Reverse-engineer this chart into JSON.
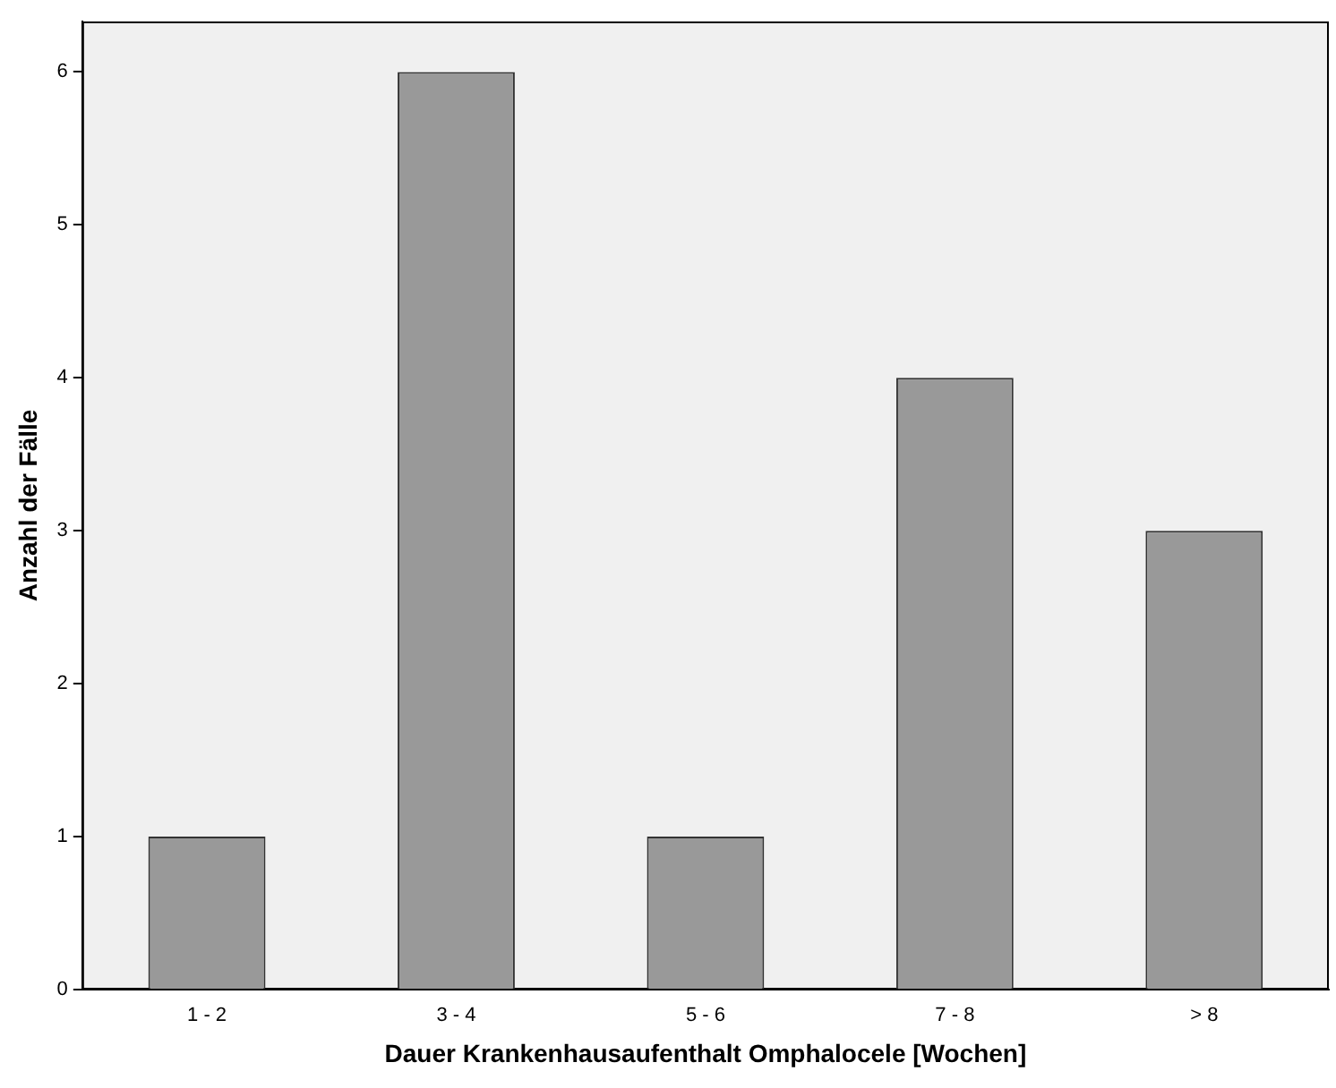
{
  "chart_data": {
    "type": "bar",
    "xlabel": "Dauer Krankenhausaufenthalt Omphalocele [Wochen]",
    "ylabel": "Anzahl der Fälle",
    "categories": [
      "1 - 2",
      "3 - 4",
      "5 - 6",
      "7 - 8",
      "> 8"
    ],
    "values": [
      1,
      6,
      1,
      4,
      3
    ],
    "color": "#999999",
    "ylim": [
      0,
      6.33
    ],
    "yticks": [
      0,
      1,
      2,
      3,
      4,
      5,
      6
    ],
    "grid": false,
    "legend": false
  }
}
